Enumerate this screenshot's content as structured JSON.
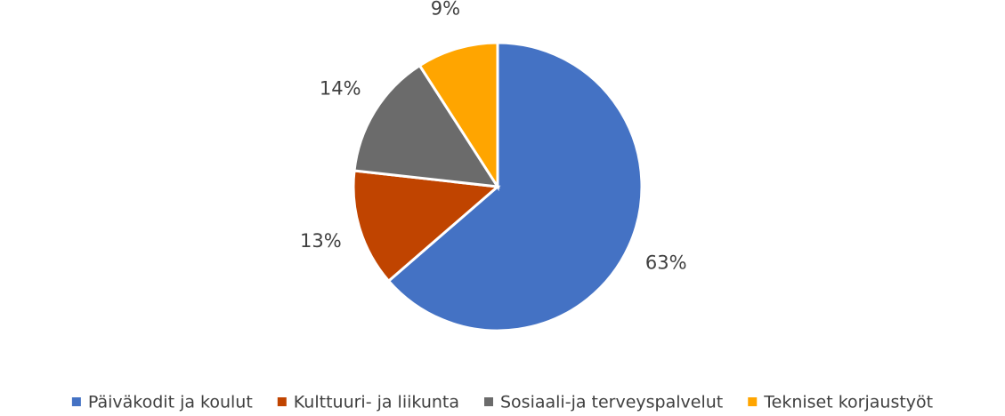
{
  "chart_data": {
    "type": "pie",
    "categories": [
      "Päiväkodit ja koulut",
      "Kulttuuri- ja liikunta",
      "Sosiaali-ja terveyspalvelut",
      "Tekniset korjaustyöt"
    ],
    "values": [
      63,
      13,
      14,
      9
    ],
    "value_labels": [
      "63%",
      "13%",
      "14%",
      "9%"
    ],
    "colors": [
      "#4472c4",
      "#c04400",
      "#6b6b6b",
      "#ffa500"
    ],
    "legend": "bottom"
  }
}
